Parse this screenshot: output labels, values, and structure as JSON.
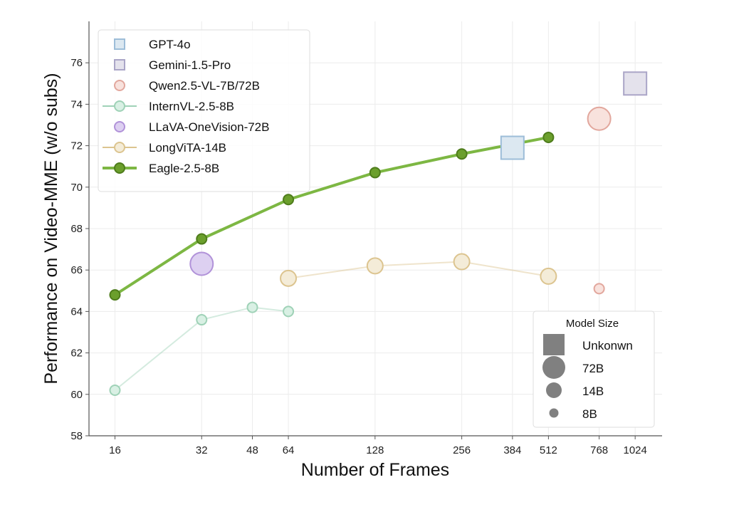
{
  "chart_data": {
    "type": "line",
    "xlabel": "Number of Frames",
    "ylabel": "Performance on Video-MME (w/o subs)",
    "x_scale": "log2",
    "xlim": [
      13,
      1270
    ],
    "ylim": [
      58,
      78
    ],
    "grid": true,
    "x_ticks": [
      16,
      32,
      48,
      64,
      128,
      256,
      384,
      512,
      768,
      1024
    ],
    "y_ticks": [
      58,
      60,
      62,
      64,
      66,
      68,
      70,
      72,
      74,
      76
    ],
    "legend_placement": "top-left",
    "series": [
      {
        "name": "GPT-4o",
        "marker": "square",
        "size": "Unknown",
        "line": false,
        "fill": "#dce8f1",
        "edge": "#9dbdd8",
        "points": [
          [
            384,
            71.9
          ]
        ]
      },
      {
        "name": "Gemini-1.5-Pro",
        "marker": "square",
        "size": "Unknown",
        "line": false,
        "fill": "#e4e2ec",
        "edge": "#aaa5c7",
        "points": [
          [
            1024,
            75.0
          ]
        ]
      },
      {
        "name": "Qwen2.5-VL-7B/72B",
        "marker": "circle",
        "line": false,
        "fill": "#f8e2dd",
        "edge": "#e2a79d",
        "points": [
          [
            768,
            73.3,
            "72B"
          ],
          [
            768,
            65.1,
            "8B"
          ]
        ]
      },
      {
        "name": "InternVL-2.5-8B",
        "marker": "circle",
        "size": "8B",
        "line": true,
        "fill": "#d9f0e4",
        "edge": "#9fd2b7",
        "points": [
          [
            16,
            60.2
          ],
          [
            32,
            63.6
          ],
          [
            48,
            64.2
          ],
          [
            64,
            64.0
          ]
        ]
      },
      {
        "name": "LLaVA-OneVision-72B",
        "marker": "circle",
        "size": "72B",
        "line": false,
        "fill": "#ddd0f1",
        "edge": "#b192d9",
        "points": [
          [
            32,
            66.3
          ]
        ]
      },
      {
        "name": "LongViTA-14B",
        "marker": "circle",
        "size": "14B",
        "line": true,
        "fill": "#f4ecd8",
        "edge": "#dcc48f",
        "points": [
          [
            64,
            65.6
          ],
          [
            128,
            66.2
          ],
          [
            256,
            66.4
          ],
          [
            512,
            65.7
          ]
        ]
      },
      {
        "name": "Eagle-2.5-8B",
        "marker": "circle",
        "size": "8B",
        "line": true,
        "fill": "#6b9f2c",
        "edge": "#4e7c1b",
        "line_color": "#7db743",
        "points": [
          [
            16,
            64.8
          ],
          [
            32,
            67.5
          ],
          [
            64,
            69.4
          ],
          [
            128,
            70.7
          ],
          [
            256,
            71.6
          ],
          [
            512,
            72.4
          ]
        ]
      }
    ],
    "size_legend": {
      "title": "Model Size",
      "entries": [
        {
          "label": "Unkonwn",
          "shape": "square"
        },
        {
          "label": "72B",
          "shape": "circle"
        },
        {
          "label": "14B",
          "shape": "circle"
        },
        {
          "label": "8B",
          "shape": "circle"
        }
      ]
    }
  }
}
